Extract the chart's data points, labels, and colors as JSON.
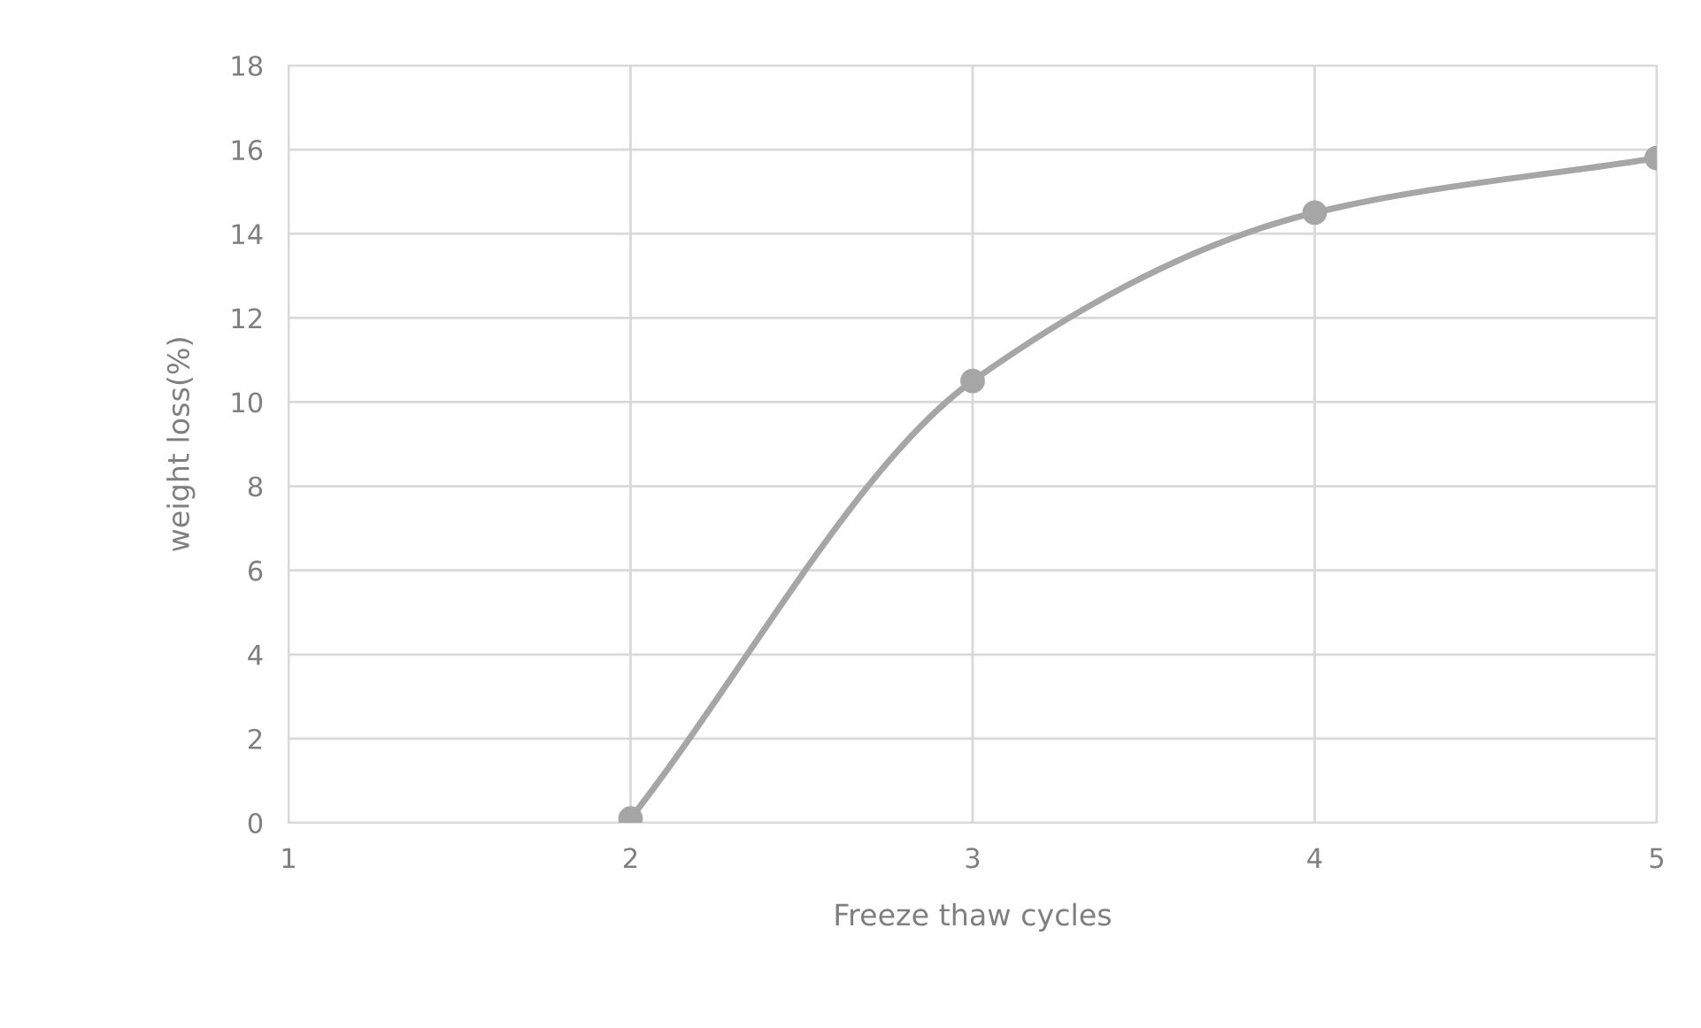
{
  "chart_data": {
    "type": "line",
    "xlabel": "Freeze thaw cycles",
    "ylabel": "weight loss(%)",
    "x": [
      2,
      3,
      4,
      5
    ],
    "series": [
      {
        "color": "#a6a6a6",
        "values": [
          0.1,
          10.5,
          14.5,
          15.8
        ]
      }
    ],
    "xlim": [
      1,
      5
    ],
    "xticks": [
      1,
      2,
      3,
      4,
      5
    ],
    "ylim": [
      0,
      18
    ],
    "yticks": [
      0,
      2,
      4,
      6,
      8,
      10,
      12,
      14,
      16,
      18
    ],
    "grid": true,
    "marker": "circle",
    "line_style": "solid"
  }
}
